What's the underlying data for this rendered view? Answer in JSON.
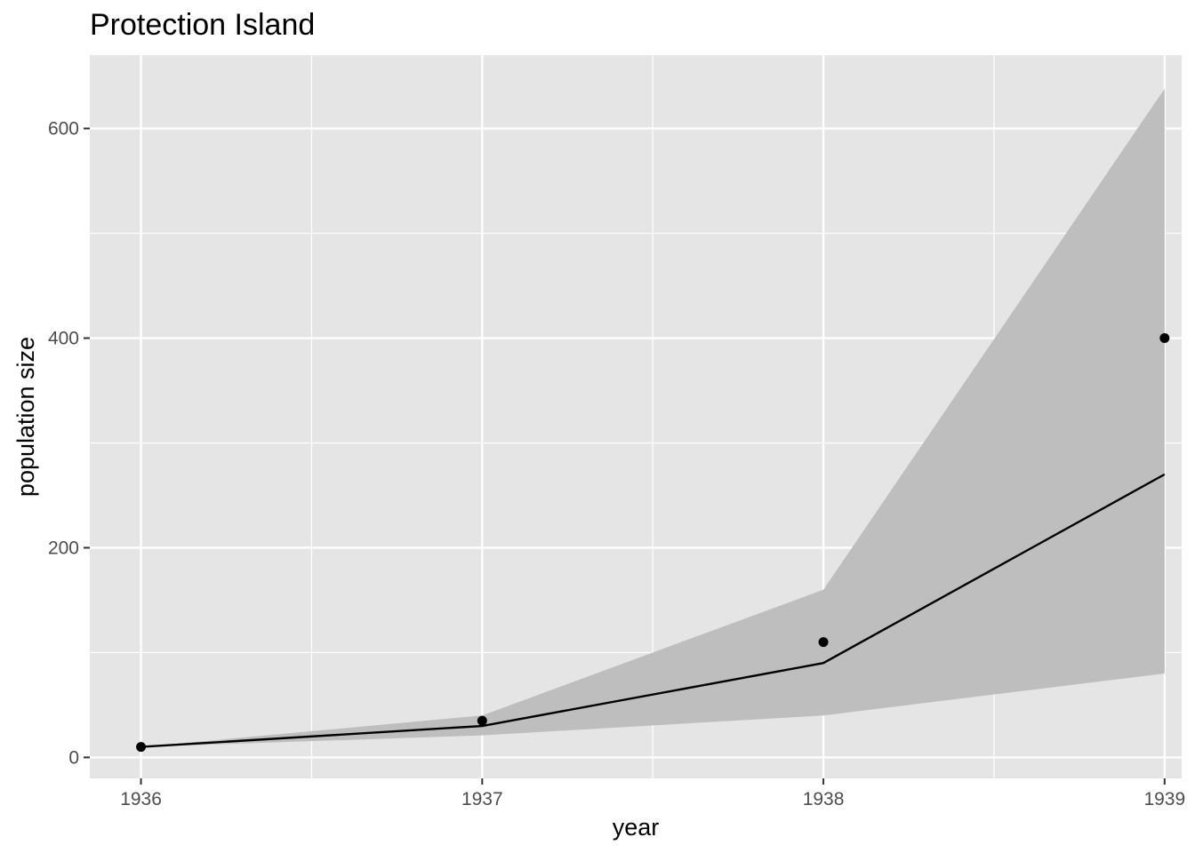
{
  "chart_data": {
    "type": "line",
    "title": "Protection Island",
    "xlabel": "year",
    "ylabel": "population size",
    "x": [
      1936,
      1937,
      1938,
      1939
    ],
    "xlim": [
      1935.85,
      1939.05
    ],
    "ylim": [
      -20,
      670
    ],
    "x_ticks": [
      1936,
      1937,
      1938,
      1939
    ],
    "x_tick_labels": [
      "1936",
      "1937",
      "1938",
      "1939"
    ],
    "y_ticks": [
      0,
      200,
      400,
      600
    ],
    "y_tick_labels": [
      "0",
      "200",
      "400",
      "600"
    ],
    "grid": true,
    "legend": "none",
    "series": [
      {
        "kind": "observed-points",
        "values": [
          10,
          35,
          110,
          400
        ]
      },
      {
        "kind": "fitted-line",
        "values": [
          10,
          30,
          90,
          270
        ]
      },
      {
        "kind": "interval-band",
        "lower": [
          10,
          21,
          40,
          80
        ],
        "upper": [
          10,
          40,
          160,
          638
        ]
      }
    ],
    "colors": {
      "panel": "#e5e5e5",
      "grid": "#ffffff",
      "band": "#bebebe",
      "line": "#000000",
      "points": "#000000"
    }
  }
}
